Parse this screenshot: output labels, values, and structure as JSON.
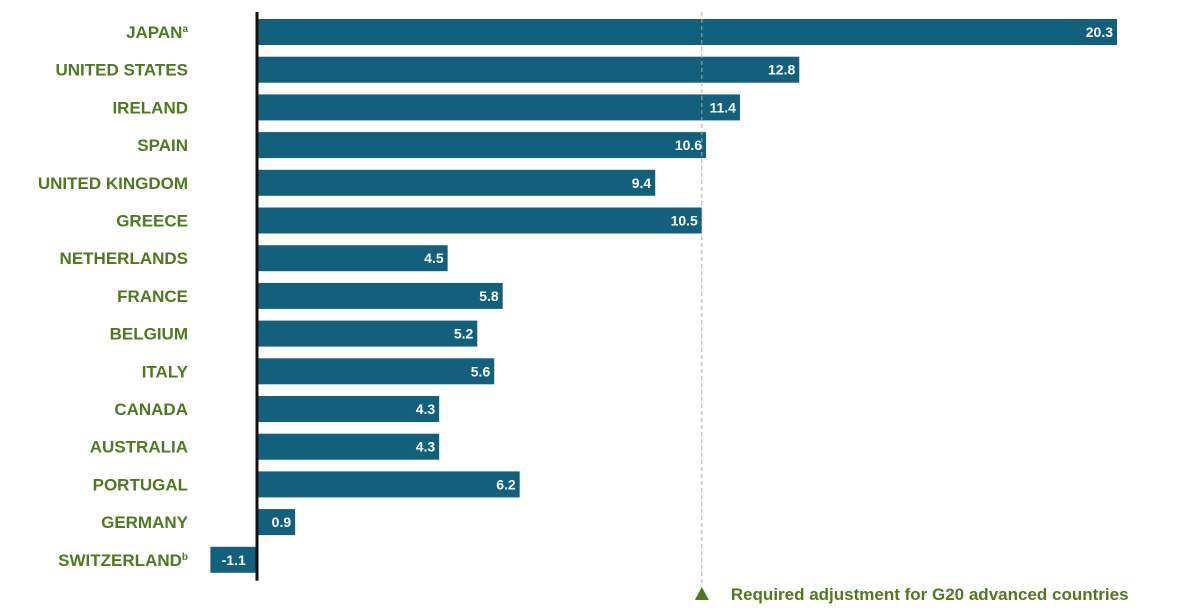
{
  "chart_data": {
    "type": "bar",
    "orientation": "horizontal",
    "categories": [
      {
        "name": "JAPAN",
        "sup": "a"
      },
      {
        "name": "UNITED STATES",
        "sup": ""
      },
      {
        "name": "IRELAND",
        "sup": ""
      },
      {
        "name": "SPAIN",
        "sup": ""
      },
      {
        "name": "UNITED KINGDOM",
        "sup": ""
      },
      {
        "name": "GREECE",
        "sup": ""
      },
      {
        "name": "NETHERLANDS",
        "sup": ""
      },
      {
        "name": "FRANCE",
        "sup": ""
      },
      {
        "name": "BELGIUM",
        "sup": ""
      },
      {
        "name": "ITALY",
        "sup": ""
      },
      {
        "name": "CANADA",
        "sup": ""
      },
      {
        "name": "AUSTRALIA",
        "sup": ""
      },
      {
        "name": "PORTUGAL",
        "sup": ""
      },
      {
        "name": "GERMANY",
        "sup": ""
      },
      {
        "name": "SWITZERLAND",
        "sup": "b"
      }
    ],
    "values": [
      20.3,
      12.8,
      11.4,
      10.6,
      9.4,
      10.5,
      4.5,
      5.8,
      5.2,
      5.6,
      4.3,
      4.3,
      6.2,
      0.9,
      -1.1
    ],
    "value_labels": [
      "20.3",
      "12.8",
      "11.4",
      "10.6",
      "9.4",
      "10.5",
      "4.5",
      "5.8",
      "5.2",
      "5.6",
      "4.3",
      "4.3",
      "6.2",
      "0.9",
      "-1.1"
    ],
    "reference_line": {
      "value": 10.5,
      "label": "Required adjustment for G20 advanced countries"
    },
    "xlim": [
      -1.1,
      20.3
    ],
    "title": "",
    "xlabel": "",
    "ylabel": "",
    "grid": false,
    "legend_position": "bottom-right",
    "colors": {
      "bar": "#13607d",
      "category_text": "#4d7a1f",
      "value_text": "#ffffff",
      "axis": "#111111",
      "reference_line": "#aaaaaa",
      "legend_marker": "#4d7a1f"
    }
  }
}
